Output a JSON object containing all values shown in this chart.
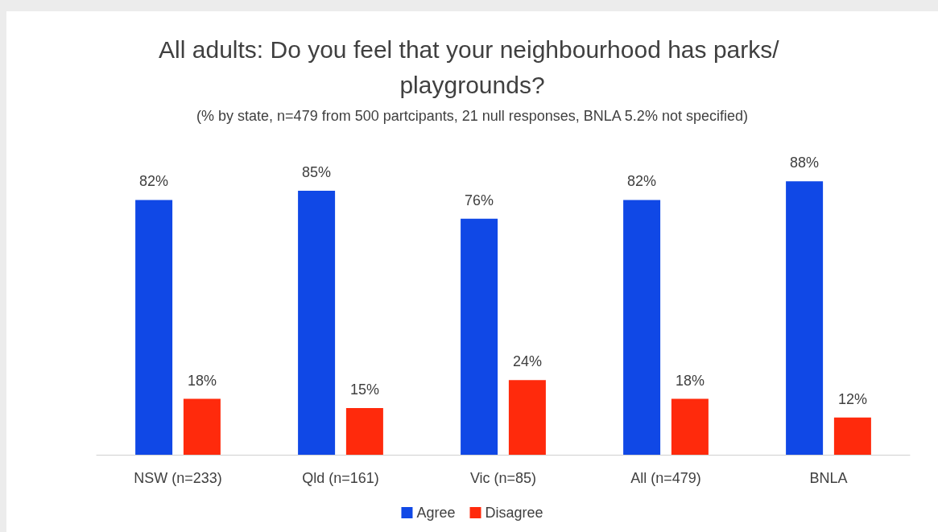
{
  "chart_data": {
    "type": "bar",
    "title": "All adults: Do you feel that your neighbourhood has parks/ playgrounds?",
    "subtitle": "(% by state, n=479 from 500 partcipants, 21 null responses, BNLA 5.2% not specified)",
    "categories": [
      "NSW (n=233)",
      "Qld (n=161)",
      "Vic (n=85)",
      "All (n=479)",
      "BNLA"
    ],
    "series": [
      {
        "name": "Agree",
        "color": "#1048e6",
        "values": [
          82,
          85,
          76,
          82,
          88
        ],
        "value_labels": [
          "82%",
          "85%",
          "76%",
          "82%",
          "88%"
        ]
      },
      {
        "name": "Disagree",
        "color": "#ff2a0c",
        "values": [
          18,
          15,
          24,
          18,
          12
        ],
        "value_labels": [
          "18%",
          "15%",
          "24%",
          "18%",
          "12%"
        ]
      }
    ],
    "legend": "bottom",
    "grid": false
  }
}
